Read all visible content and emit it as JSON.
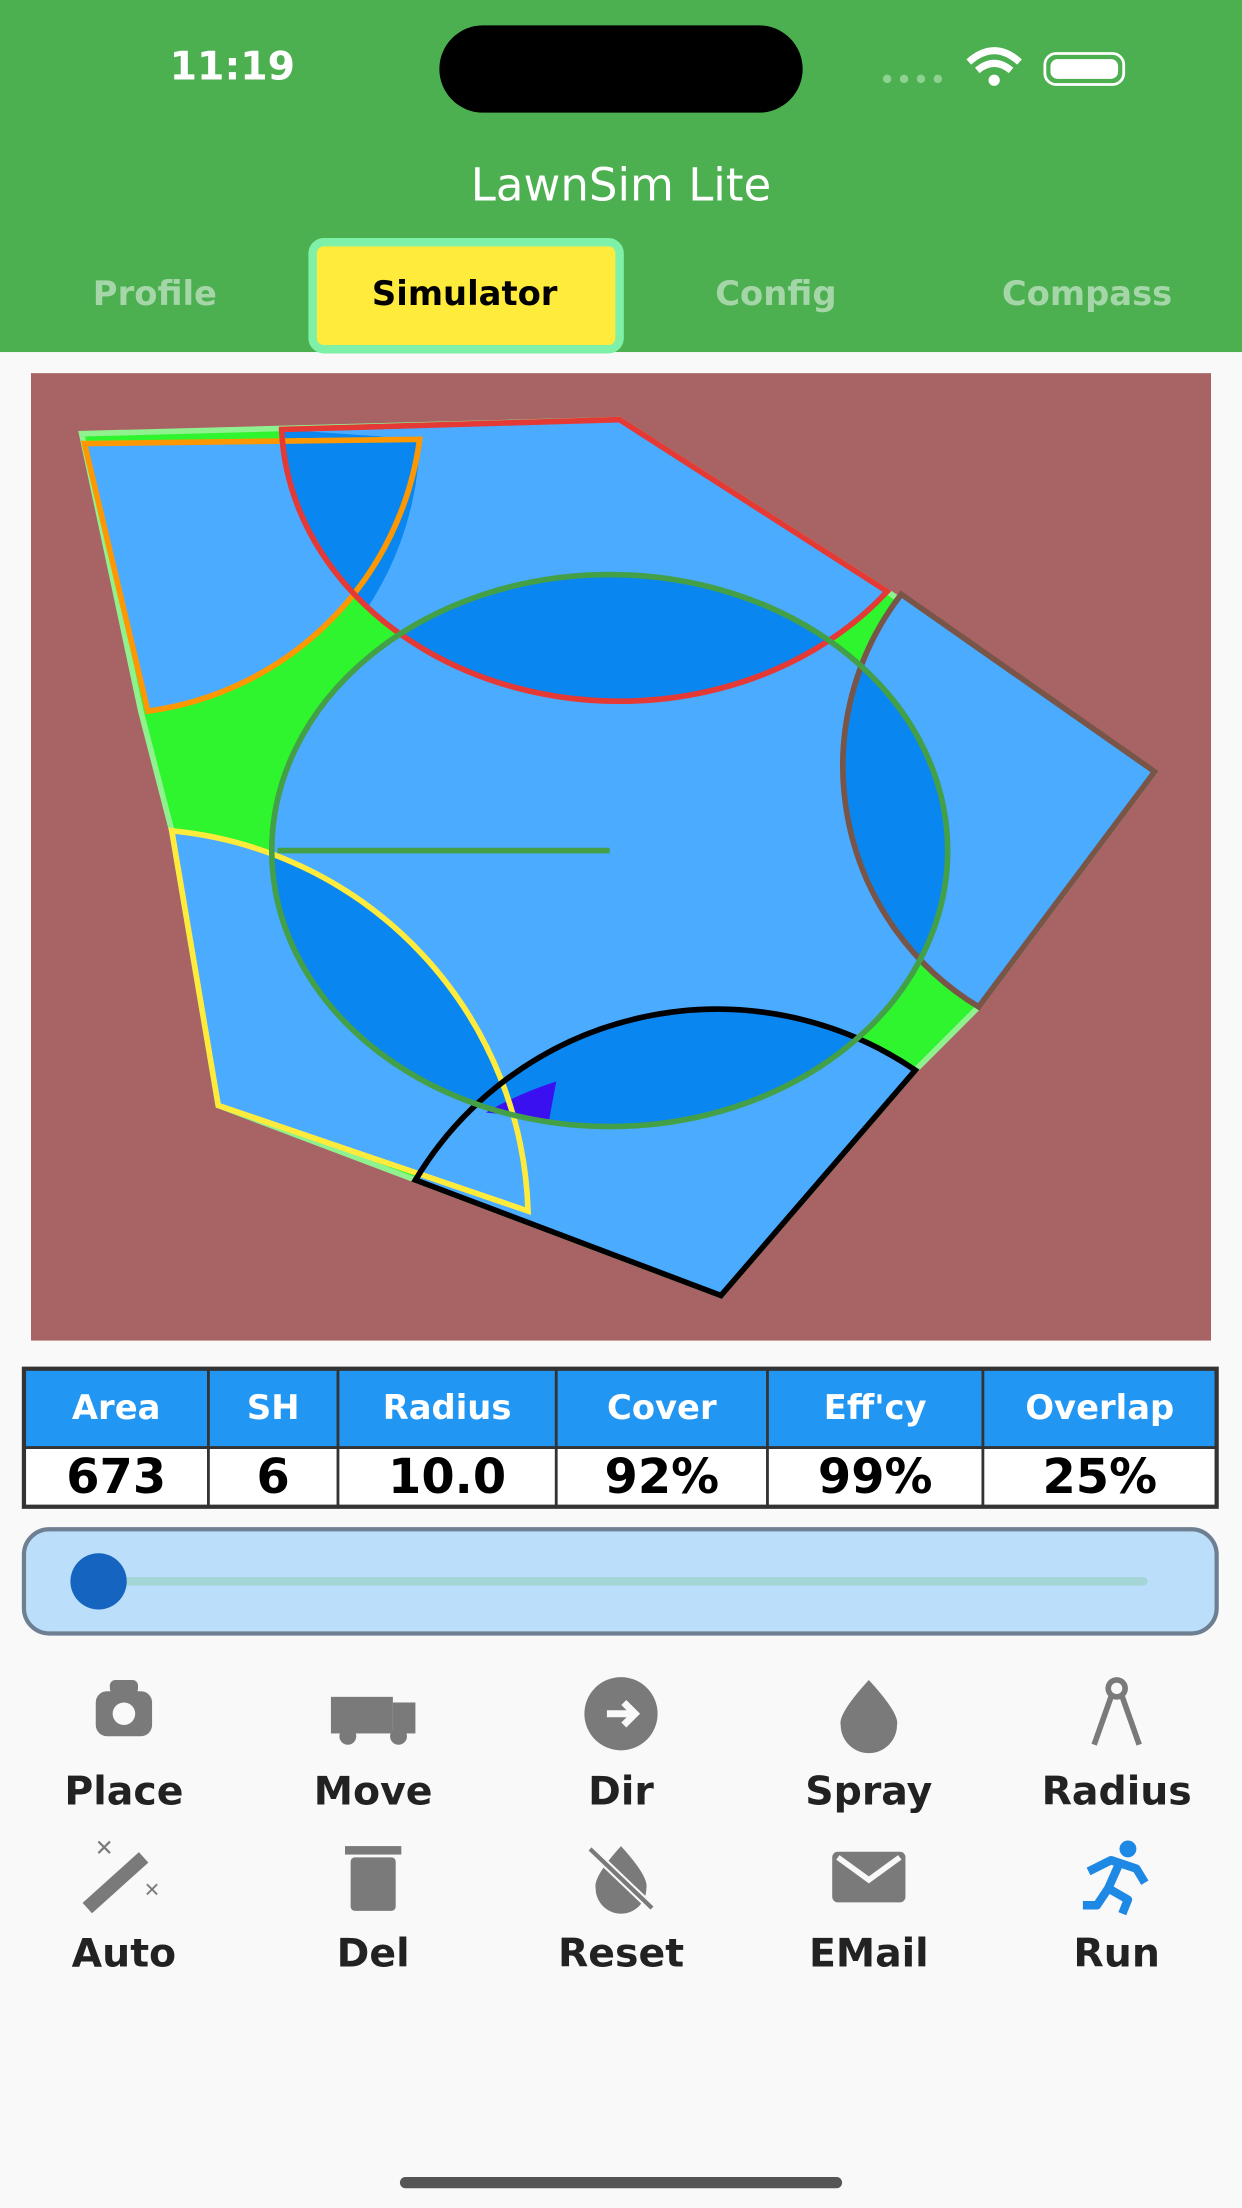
{
  "status_bar": {
    "time": "11:19"
  },
  "header": {
    "title": "LawnSim Lite",
    "tabs": [
      {
        "label": "Profile",
        "selected": false
      },
      {
        "label": "Simulator",
        "selected": true
      },
      {
        "label": "Config",
        "selected": false
      },
      {
        "label": "Compass",
        "selected": false
      }
    ]
  },
  "stats_table": {
    "headers": [
      "Area",
      "SH",
      "Radius",
      "Cover",
      "Eff'cy",
      "Overlap"
    ],
    "values": [
      "673",
      "6",
      "10.0",
      "92%",
      "99%",
      "25%"
    ]
  },
  "toolbar": {
    "buttons": [
      "Place",
      "Move",
      "Dir",
      "Spray",
      "Radius",
      "Auto",
      "Del",
      "Reset",
      "EMail",
      "Run"
    ]
  }
}
